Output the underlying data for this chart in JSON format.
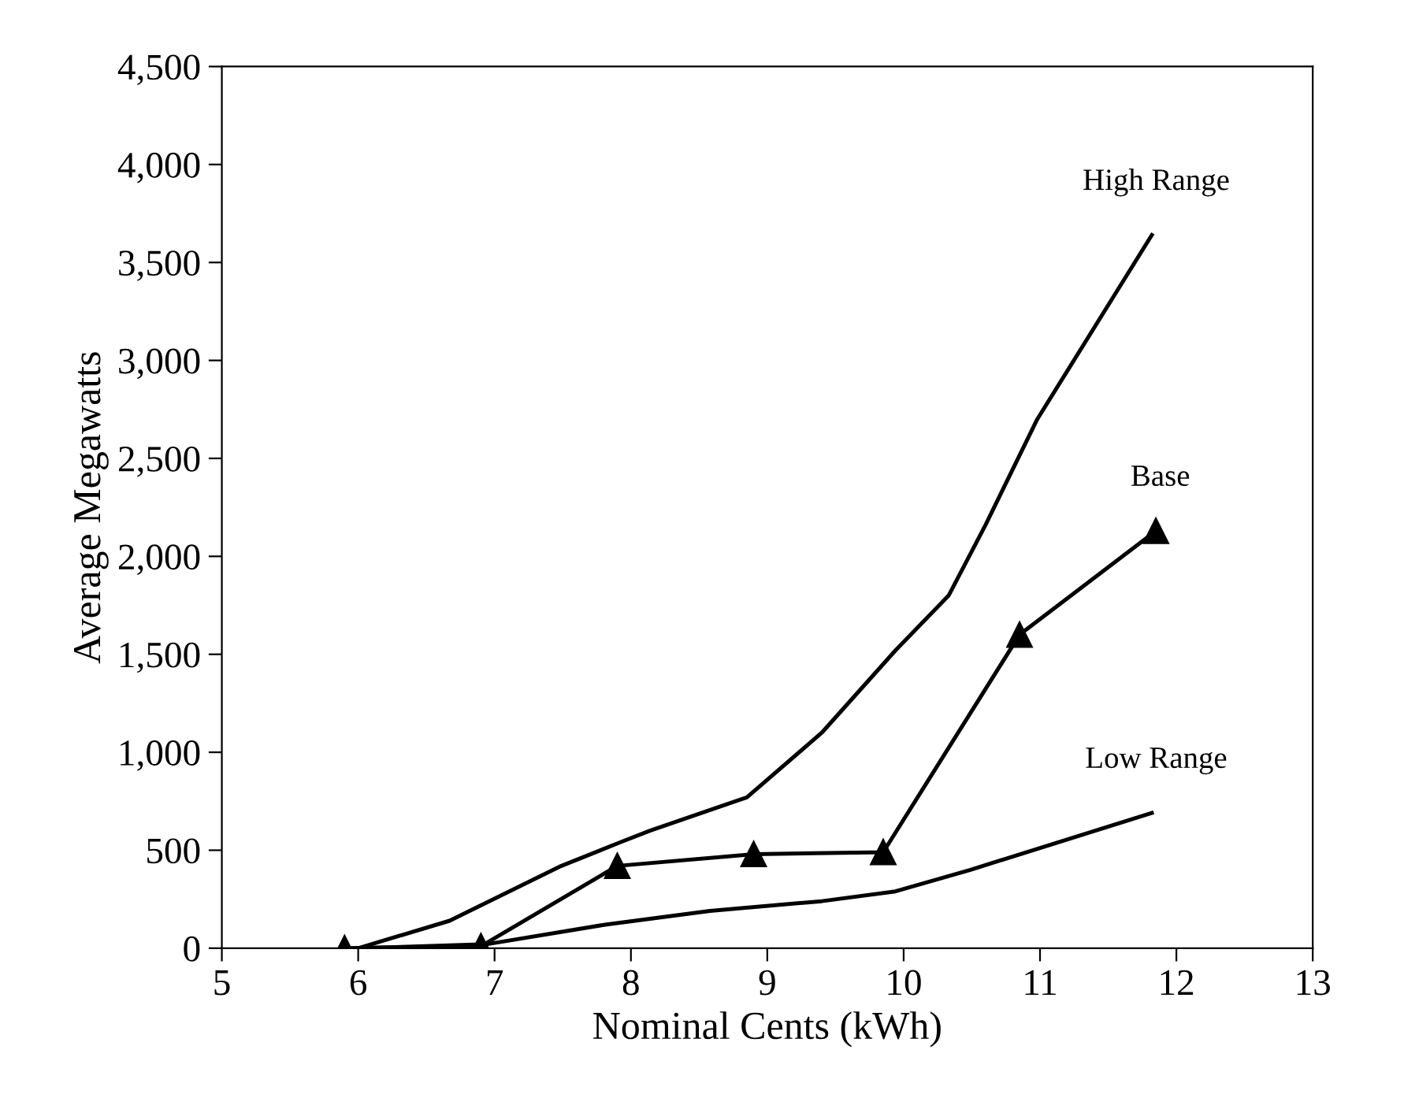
{
  "chart_data": {
    "type": "line",
    "xlabel": "Nominal Cents (kWh)",
    "ylabel": "Average Megawatts",
    "xlim": [
      5,
      13
    ],
    "xticks": [
      5,
      6,
      7,
      8,
      9,
      10,
      11,
      12,
      13
    ],
    "ylim": [
      0,
      4500
    ],
    "yticks": [
      {
        "value": 0,
        "label": "0"
      },
      {
        "value": 500,
        "label": "500"
      },
      {
        "value": 1000,
        "label": "1,000"
      },
      {
        "value": 1500,
        "label": "1,500"
      },
      {
        "value": 2000,
        "label": "2,000"
      },
      {
        "value": 2500,
        "label": "2,500"
      },
      {
        "value": 3000,
        "label": "3,000"
      },
      {
        "value": 3500,
        "label": "3,500"
      },
      {
        "value": 4000,
        "label": "4,000"
      },
      {
        "value": 4500,
        "label": "4,500"
      }
    ],
    "grid": false,
    "legend": false,
    "series": [
      {
        "name": "High Range",
        "color": "#000000",
        "marker": "none",
        "x": [
          6.0,
          6.67,
          7.49,
          7.92,
          8.14,
          8.85,
          9.4,
          9.94,
          10.33,
          10.6,
          10.98,
          11.82
        ],
        "values": [
          0,
          140,
          420,
          540,
          600,
          770,
          1100,
          1520,
          1800,
          2160,
          2700,
          3640
        ]
      },
      {
        "name": "Base",
        "color": "#000000",
        "marker": "triangle",
        "x": [
          5.9,
          6.9,
          7.9,
          8.9,
          9.85,
          10.85,
          11.85
        ],
        "values": [
          0,
          10,
          420,
          480,
          490,
          1600,
          2130
        ]
      },
      {
        "name": "Low Range",
        "color": "#000000",
        "marker": "none",
        "x": [
          6.0,
          6.94,
          7.81,
          8.58,
          9.4,
          9.94,
          10.49,
          11.82
        ],
        "values": [
          0,
          20,
          120,
          190,
          240,
          290,
          400,
          690
        ]
      }
    ]
  }
}
